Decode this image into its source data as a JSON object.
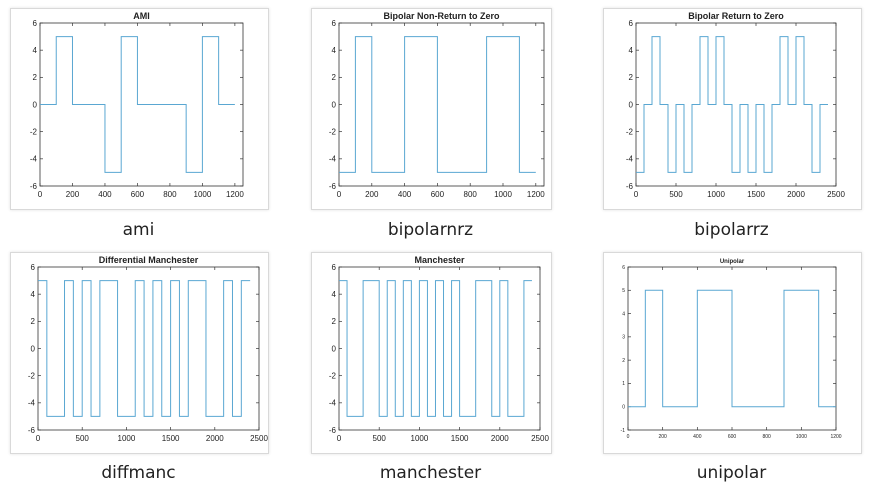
{
  "colors": {
    "signal": "#5aa7d2",
    "axis": "#333333",
    "text": "#222222"
  },
  "chart_data": [
    {
      "id": "ami",
      "type": "line",
      "title": "AMI",
      "caption": "ami",
      "xlim": [
        0,
        1250
      ],
      "ylim": [
        -6,
        6
      ],
      "xticks": [
        0,
        200,
        400,
        600,
        800,
        1000,
        1200
      ],
      "yticks": [
        -6,
        -4,
        -2,
        0,
        2,
        4,
        6
      ],
      "series": [
        {
          "x": [
            0,
            100,
            100,
            200,
            200,
            400,
            400,
            500,
            500,
            600,
            600,
            900,
            900,
            1000,
            1000,
            1100,
            1100,
            1200
          ],
          "y": [
            0,
            0,
            5,
            5,
            0,
            0,
            -5,
            -5,
            5,
            5,
            0,
            0,
            -5,
            -5,
            5,
            5,
            0,
            0
          ]
        }
      ]
    },
    {
      "id": "bipolarnrz",
      "type": "line",
      "title": "Bipolar Non-Return to Zero",
      "caption": "bipolarnrz",
      "xlim": [
        0,
        1250
      ],
      "ylim": [
        -6,
        6
      ],
      "xticks": [
        0,
        200,
        400,
        600,
        800,
        1000,
        1200
      ],
      "yticks": [
        -6,
        -4,
        -2,
        0,
        2,
        4,
        6
      ],
      "series": [
        {
          "x": [
            0,
            100,
            100,
            200,
            200,
            400,
            400,
            600,
            600,
            900,
            900,
            1100,
            1100,
            1200
          ],
          "y": [
            -5,
            -5,
            5,
            5,
            -5,
            -5,
            5,
            5,
            -5,
            -5,
            5,
            5,
            -5,
            -5
          ]
        }
      ]
    },
    {
      "id": "bipolarrz",
      "type": "line",
      "title": "Bipolar Return to Zero",
      "caption": "bipolarrz",
      "xlim": [
        0,
        2500
      ],
      "ylim": [
        -6,
        6
      ],
      "xticks": [
        0,
        500,
        1000,
        1500,
        2000,
        2500
      ],
      "yticks": [
        -6,
        -4,
        -2,
        0,
        2,
        4,
        6
      ],
      "series": [
        {
          "x": [
            0,
            100,
            100,
            200,
            200,
            300,
            300,
            400,
            400,
            500,
            500,
            600,
            600,
            700,
            700,
            800,
            800,
            900,
            900,
            1000,
            1000,
            1100,
            1100,
            1200,
            1200,
            1300,
            1300,
            1400,
            1400,
            1500,
            1500,
            1600,
            1600,
            1700,
            1700,
            1800,
            1800,
            1900,
            1900,
            2000,
            2000,
            2100,
            2100,
            2200,
            2200,
            2300,
            2300,
            2400
          ],
          "y": [
            -5,
            -5,
            0,
            0,
            5,
            5,
            0,
            0,
            -5,
            -5,
            0,
            0,
            -5,
            -5,
            0,
            0,
            5,
            5,
            0,
            0,
            5,
            5,
            0,
            0,
            -5,
            -5,
            0,
            0,
            -5,
            -5,
            0,
            0,
            -5,
            -5,
            0,
            0,
            5,
            5,
            0,
            0,
            5,
            5,
            0,
            0,
            -5,
            -5,
            0,
            0
          ]
        }
      ]
    },
    {
      "id": "diffmanc",
      "type": "line",
      "title": "Differential Manchester",
      "caption": "diffmanc",
      "xlim": [
        0,
        2500
      ],
      "ylim": [
        -6,
        6
      ],
      "xticks": [
        0,
        500,
        1000,
        1500,
        2000,
        2500
      ],
      "yticks": [
        -6,
        -4,
        -2,
        0,
        2,
        4,
        6
      ],
      "series": [
        {
          "x": [
            0,
            100,
            100,
            300,
            300,
            400,
            400,
            500,
            500,
            600,
            600,
            700,
            700,
            900,
            900,
            1100,
            1100,
            1200,
            1200,
            1300,
            1300,
            1400,
            1400,
            1500,
            1500,
            1600,
            1600,
            1700,
            1700,
            1900,
            1900,
            2100,
            2100,
            2200,
            2200,
            2300,
            2300,
            2400
          ],
          "y": [
            5,
            5,
            -5,
            -5,
            5,
            5,
            -5,
            -5,
            5,
            5,
            -5,
            -5,
            5,
            5,
            -5,
            -5,
            5,
            5,
            -5,
            -5,
            5,
            5,
            -5,
            -5,
            5,
            5,
            -5,
            -5,
            5,
            5,
            -5,
            -5,
            5,
            5,
            -5,
            -5,
            5,
            5
          ]
        }
      ]
    },
    {
      "id": "manchester",
      "type": "line",
      "title": "Manchester",
      "caption": "manchester",
      "xlim": [
        0,
        2500
      ],
      "ylim": [
        -6,
        6
      ],
      "xticks": [
        0,
        500,
        1000,
        1500,
        2000,
        2500
      ],
      "yticks": [
        -6,
        -4,
        -2,
        0,
        2,
        4,
        6
      ],
      "series": [
        {
          "x": [
            0,
            100,
            100,
            300,
            300,
            500,
            500,
            600,
            600,
            700,
            700,
            800,
            800,
            900,
            900,
            1000,
            1000,
            1100,
            1100,
            1200,
            1200,
            1300,
            1300,
            1400,
            1400,
            1500,
            1500,
            1700,
            1700,
            1900,
            1900,
            2000,
            2000,
            2100,
            2100,
            2300,
            2300,
            2400
          ],
          "y": [
            5,
            5,
            -5,
            -5,
            5,
            5,
            -5,
            -5,
            5,
            5,
            -5,
            -5,
            5,
            5,
            -5,
            -5,
            5,
            5,
            -5,
            -5,
            5,
            5,
            -5,
            -5,
            5,
            5,
            -5,
            -5,
            5,
            5,
            -5,
            -5,
            5,
            5,
            -5,
            -5,
            5,
            5
          ]
        }
      ]
    },
    {
      "id": "unipolar",
      "type": "line",
      "title": "Unipolar",
      "caption": "unipolar",
      "xlim": [
        0,
        1200
      ],
      "ylim": [
        -1,
        6
      ],
      "xticks": [
        0,
        200,
        400,
        600,
        800,
        1000,
        1200
      ],
      "yticks": [
        -1,
        0,
        1,
        2,
        3,
        4,
        5,
        6
      ],
      "series": [
        {
          "x": [
            0,
            100,
            100,
            200,
            200,
            400,
            400,
            600,
            600,
            900,
            900,
            1100,
            1100,
            1200
          ],
          "y": [
            0,
            0,
            5,
            5,
            0,
            0,
            5,
            5,
            0,
            0,
            5,
            5,
            0,
            0
          ]
        }
      ]
    }
  ]
}
